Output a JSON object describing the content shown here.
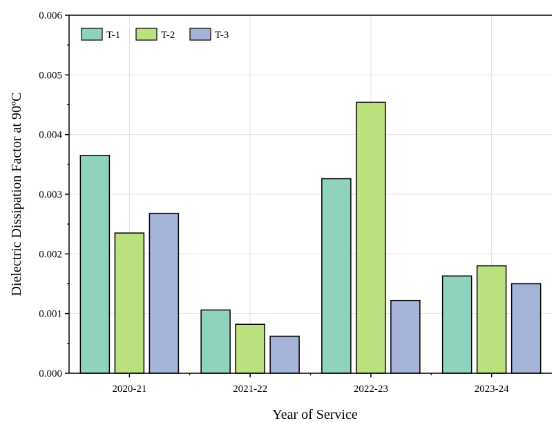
{
  "chart_data": {
    "type": "bar",
    "title": "",
    "xlabel": "Year of Service",
    "ylabel": "Dielectric Dissipation Factor at 90ºC",
    "categories": [
      "2020-21",
      "2021-22",
      "2022-23",
      "2023-24"
    ],
    "series": [
      {
        "name": "T-1",
        "color": "#8fd3bf",
        "values": [
          0.00365,
          0.00106,
          0.00326,
          0.00163
        ]
      },
      {
        "name": "T-2",
        "color": "#bde07e",
        "values": [
          0.00235,
          0.00082,
          0.00454,
          0.0018
        ]
      },
      {
        "name": "T-3",
        "color": "#a6b3d8",
        "values": [
          0.00268,
          0.00062,
          0.00122,
          0.0015
        ]
      }
    ],
    "ylim": [
      0,
      0.006
    ],
    "yticks": [
      "0.000",
      "0.001",
      "0.002",
      "0.003",
      "0.004",
      "0.005",
      "0.006"
    ],
    "grid": true,
    "legend_position": "top-left"
  }
}
